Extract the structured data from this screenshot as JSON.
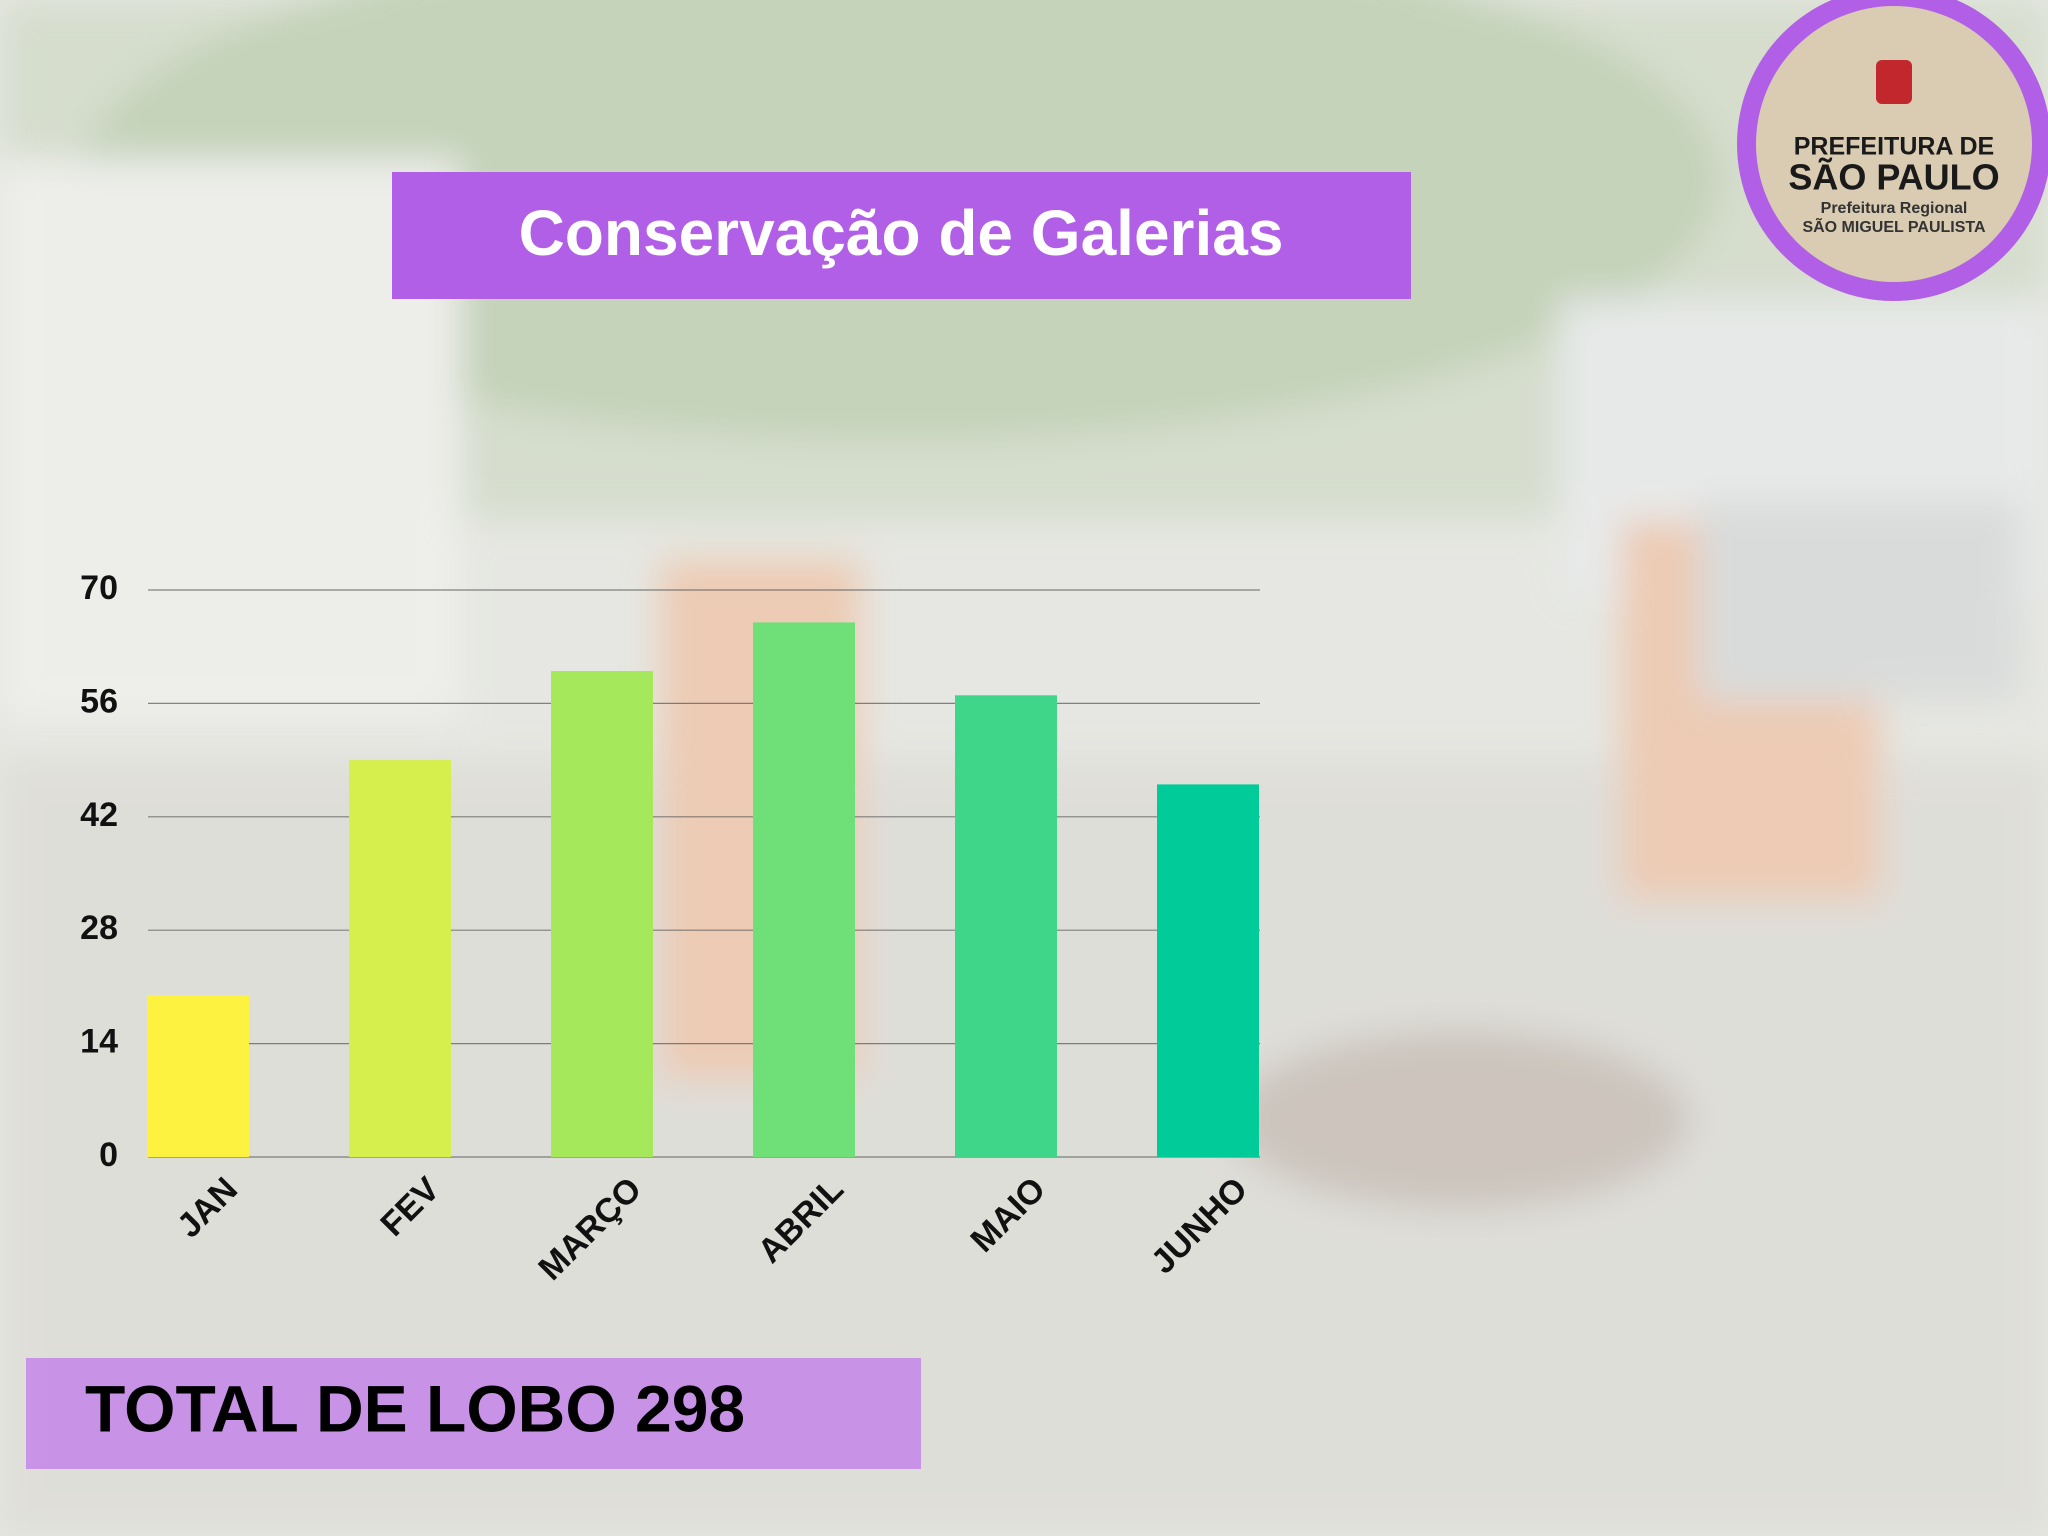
{
  "chart_data": {
    "type": "bar",
    "title": "Conservação de Galerias",
    "categories": [
      "JAN",
      "FEV",
      "MARÇO",
      "ABRIL",
      "MAIO",
      "JUNHO"
    ],
    "values": [
      20,
      49,
      60,
      66,
      57,
      46
    ],
    "colors": [
      "#fdf23f",
      "#d6ef4c",
      "#a6e85c",
      "#6fdf78",
      "#3fd68a",
      "#00cb99"
    ],
    "ylim": [
      0,
      70
    ],
    "yticks": [
      0,
      14,
      28,
      42,
      56,
      70
    ],
    "grid": true
  },
  "total_label": "TOTAL DE  LOBO 298",
  "logo": {
    "line1": "PREFEITURA DE",
    "line2": "SÃO PAULO",
    "line3": "Prefeitura Regional",
    "line4": "SÃO MIGUEL PAULISTA"
  }
}
